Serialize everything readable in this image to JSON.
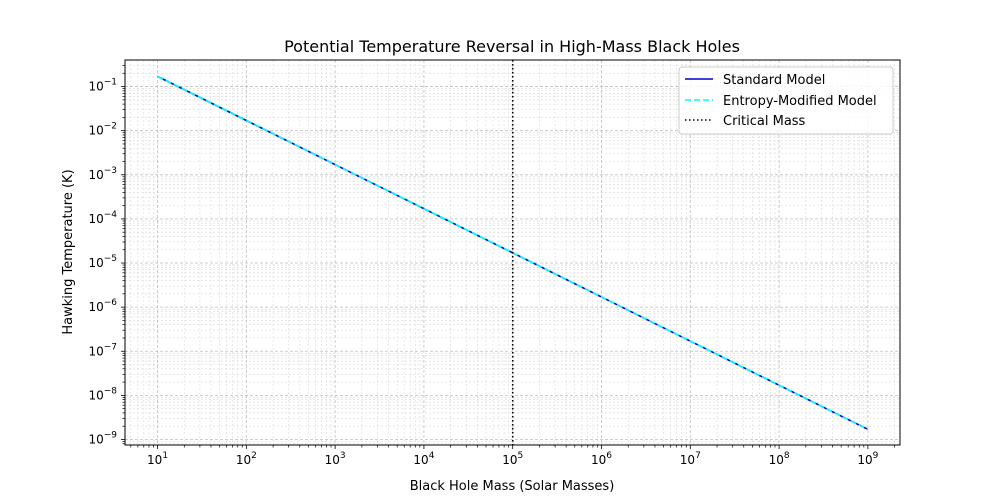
{
  "chart_data": {
    "type": "line",
    "title": "Potential Temperature Reversal in High-Mass Black Holes",
    "xlabel": "Black Hole Mass (Solar Masses)",
    "ylabel": "Hawking Temperature (K)",
    "xscale": "log",
    "yscale": "log",
    "xlim": [
      4.3,
      2300000000.0
    ],
    "ylim": [
      7.5e-10,
      0.4
    ],
    "grid": true,
    "legend_position": "top-right",
    "xticks": [
      {
        "value": 10,
        "base": "10",
        "exp": "1"
      },
      {
        "value": 100,
        "base": "10",
        "exp": "2"
      },
      {
        "value": 1000,
        "base": "10",
        "exp": "3"
      },
      {
        "value": 10000,
        "base": "10",
        "exp": "4"
      },
      {
        "value": 100000,
        "base": "10",
        "exp": "5"
      },
      {
        "value": 1000000,
        "base": "10",
        "exp": "6"
      },
      {
        "value": 10000000,
        "base": "10",
        "exp": "7"
      },
      {
        "value": 100000000,
        "base": "10",
        "exp": "8"
      },
      {
        "value": 1000000000,
        "base": "10",
        "exp": "9"
      }
    ],
    "yticks": [
      {
        "value": 0.1,
        "base": "10",
        "exp": "−1"
      },
      {
        "value": 0.01,
        "base": "10",
        "exp": "−2"
      },
      {
        "value": 0.001,
        "base": "10",
        "exp": "−3"
      },
      {
        "value": 0.0001,
        "base": "10",
        "exp": "−4"
      },
      {
        "value": 1e-05,
        "base": "10",
        "exp": "−5"
      },
      {
        "value": 1e-06,
        "base": "10",
        "exp": "−6"
      },
      {
        "value": 1e-07,
        "base": "10",
        "exp": "−7"
      },
      {
        "value": 1e-08,
        "base": "10",
        "exp": "−8"
      },
      {
        "value": 1e-09,
        "base": "10",
        "exp": "−9"
      }
    ],
    "series": [
      {
        "name": "Standard Model",
        "color": "#0000cd",
        "style": "solid",
        "x": [
          10,
          1000000000
        ],
        "y": [
          0.17,
          1.7e-09
        ]
      },
      {
        "name": "Entropy-Modified Model",
        "color": "#00ffff",
        "style": "dashed",
        "x": [
          10,
          1000000000
        ],
        "y": [
          0.17,
          1.7e-09
        ]
      }
    ],
    "vlines": [
      {
        "name": "Critical Mass",
        "color": "#000000",
        "style": "dotted",
        "x": 100000
      }
    ]
  }
}
